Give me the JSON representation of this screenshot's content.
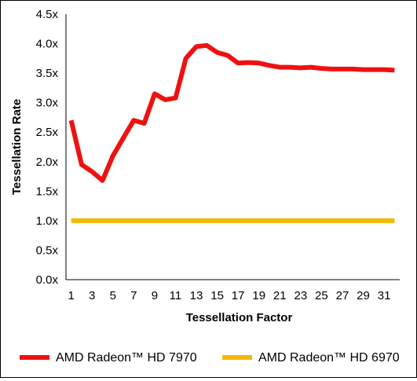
{
  "chart_data": {
    "type": "line",
    "title": "",
    "xlabel": "Tessellation Factor",
    "ylabel": "Tessellation Rate",
    "xlim": [
      1,
      32
    ],
    "ylim": [
      0,
      4.5
    ],
    "x_ticks": [
      1,
      3,
      5,
      7,
      9,
      11,
      13,
      15,
      17,
      19,
      21,
      23,
      25,
      27,
      29,
      31
    ],
    "y_ticks": [
      0,
      0.5,
      1.0,
      1.5,
      2.0,
      2.5,
      3.0,
      3.5,
      4.0,
      4.5
    ],
    "y_tick_labels": [
      "0.0x",
      "0.5x",
      "1.0x",
      "1.5x",
      "2.0x",
      "2.5x",
      "3.0x",
      "3.5x",
      "4.0x",
      "4.5x"
    ],
    "grid": false,
    "legend": "bottom",
    "x": [
      1,
      2,
      3,
      4,
      5,
      6,
      7,
      8,
      9,
      10,
      11,
      12,
      13,
      14,
      15,
      16,
      17,
      18,
      19,
      20,
      21,
      22,
      23,
      24,
      25,
      26,
      27,
      28,
      29,
      30,
      31,
      32
    ],
    "series": [
      {
        "name": "AMD Radeon™ HD 7970",
        "color": "#ee1111",
        "values": [
          2.7,
          1.95,
          1.83,
          1.68,
          2.1,
          2.4,
          2.7,
          2.65,
          3.15,
          3.05,
          3.08,
          3.75,
          3.95,
          3.97,
          3.85,
          3.8,
          3.67,
          3.68,
          3.67,
          3.63,
          3.6,
          3.6,
          3.59,
          3.6,
          3.58,
          3.57,
          3.57,
          3.57,
          3.56,
          3.56,
          3.56,
          3.55
        ]
      },
      {
        "name": "AMD Radeon™ HD 6970",
        "color": "#f5b800",
        "values": [
          1,
          1,
          1,
          1,
          1,
          1,
          1,
          1,
          1,
          1,
          1,
          1,
          1,
          1,
          1,
          1,
          1,
          1,
          1,
          1,
          1,
          1,
          1,
          1,
          1,
          1,
          1,
          1,
          1,
          1,
          1,
          1
        ]
      }
    ]
  }
}
